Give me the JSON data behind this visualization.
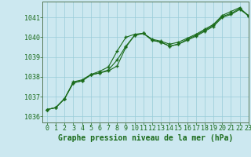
{
  "title": "Graphe pression niveau de la mer (hPa)",
  "background_color": "#cce8f0",
  "grid_color": "#99ccd9",
  "line_color": "#1a6b1a",
  "xlim": [
    -0.5,
    23
  ],
  "ylim": [
    1035.7,
    1041.8
  ],
  "xticks": [
    0,
    1,
    2,
    3,
    4,
    5,
    6,
    7,
    8,
    9,
    10,
    11,
    12,
    13,
    14,
    15,
    16,
    17,
    18,
    19,
    20,
    21,
    22,
    23
  ],
  "yticks": [
    1036,
    1037,
    1038,
    1039,
    1040,
    1041
  ],
  "line1_x": [
    0,
    1,
    2,
    3,
    4,
    5,
    6,
    7,
    8,
    9,
    10,
    11,
    12,
    13,
    14,
    15,
    16,
    17,
    18,
    19,
    20,
    21,
    22,
    23
  ],
  "line1_y": [
    1036.35,
    1036.45,
    1036.9,
    1037.7,
    1037.8,
    1038.1,
    1038.2,
    1038.3,
    1038.55,
    1039.5,
    1040.1,
    1040.2,
    1039.85,
    1039.75,
    1039.55,
    1039.65,
    1039.85,
    1040.05,
    1040.3,
    1040.55,
    1041.0,
    1041.15,
    1041.4,
    1041.1
  ],
  "line2_x": [
    0,
    1,
    2,
    3,
    4,
    5,
    6,
    7,
    8,
    9,
    10,
    11,
    12,
    13,
    14,
    15,
    16,
    17,
    18,
    19,
    20,
    21,
    22,
    23
  ],
  "line2_y": [
    1036.35,
    1036.45,
    1036.9,
    1037.7,
    1037.8,
    1038.1,
    1038.2,
    1038.35,
    1038.85,
    1039.55,
    1040.1,
    1040.2,
    1039.85,
    1039.75,
    1039.55,
    1039.65,
    1039.9,
    1040.1,
    1040.35,
    1040.6,
    1041.05,
    1041.2,
    1041.45,
    1041.1
  ],
  "line3_x": [
    0,
    1,
    2,
    3,
    4,
    5,
    6,
    7,
    8,
    9,
    10,
    11,
    12,
    13,
    14,
    15,
    16,
    17,
    18,
    19,
    20,
    21,
    22,
    23
  ],
  "line3_y": [
    1036.35,
    1036.45,
    1036.9,
    1037.75,
    1037.85,
    1038.12,
    1038.28,
    1038.5,
    1039.3,
    1040.0,
    1040.15,
    1040.2,
    1039.9,
    1039.8,
    1039.65,
    1039.75,
    1039.95,
    1040.15,
    1040.4,
    1040.65,
    1041.1,
    1041.3,
    1041.5,
    1041.05
  ],
  "tick_fontsize": 6,
  "label_fontsize": 7
}
